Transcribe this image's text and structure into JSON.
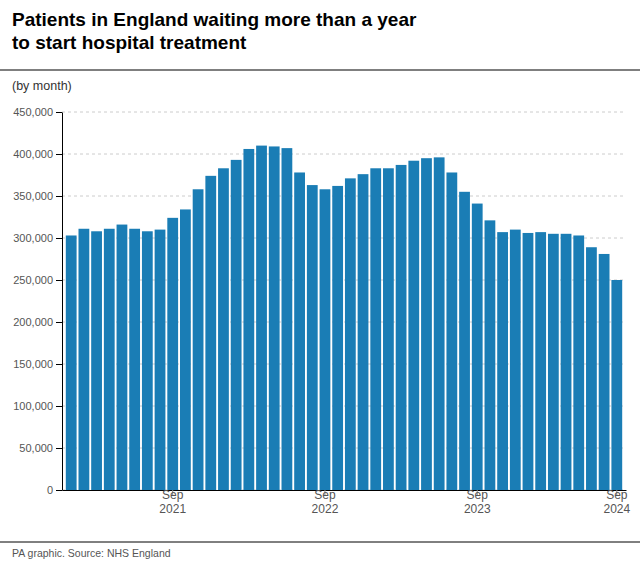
{
  "chart_data": {
    "type": "bar",
    "title": "Patients in England waiting more than a year\nto start hospital treatment",
    "subtitle": "(by month)",
    "source": "PA graphic. Source: NHS England",
    "color": "#1a7db5",
    "categories": [
      null,
      null,
      null,
      null,
      null,
      null,
      null,
      null,
      "Sep\n2021",
      null,
      null,
      null,
      null,
      null,
      null,
      null,
      null,
      null,
      null,
      null,
      "Sep\n2022",
      null,
      null,
      null,
      null,
      null,
      null,
      null,
      null,
      null,
      null,
      null,
      "Sep\n2023",
      null,
      null,
      null,
      null,
      null,
      null,
      null,
      null,
      null,
      null,
      "Sep\n2024"
    ],
    "values": [
      303000,
      311000,
      308000,
      311000,
      316000,
      311000,
      308000,
      310000,
      324000,
      334000,
      358000,
      374000,
      383000,
      393000,
      406000,
      410000,
      409000,
      407000,
      378000,
      363000,
      358000,
      362000,
      371000,
      376000,
      383000,
      383000,
      387000,
      392000,
      395000,
      396000,
      378000,
      355000,
      341000,
      321000,
      307000,
      310000,
      306000,
      307000,
      305000,
      305000,
      303000,
      289000,
      281000,
      250000
    ],
    "ylim": [
      0,
      450000
    ],
    "yticks": [
      0,
      {
        "value": 50000,
        "label": "50,000"
      },
      {
        "value": 100000,
        "label": "100,000"
      },
      {
        "value": 150000,
        "label": "150,000"
      },
      {
        "value": 200000,
        "label": "200,000"
      },
      {
        "value": 250000,
        "label": "250,000"
      },
      {
        "value": 300000,
        "label": "300,000"
      },
      {
        "value": 350000,
        "label": "350,000"
      },
      {
        "value": 400000,
        "label": "400,000"
      },
      {
        "value": 450000,
        "label": "450,000"
      }
    ],
    "grid": true
  }
}
